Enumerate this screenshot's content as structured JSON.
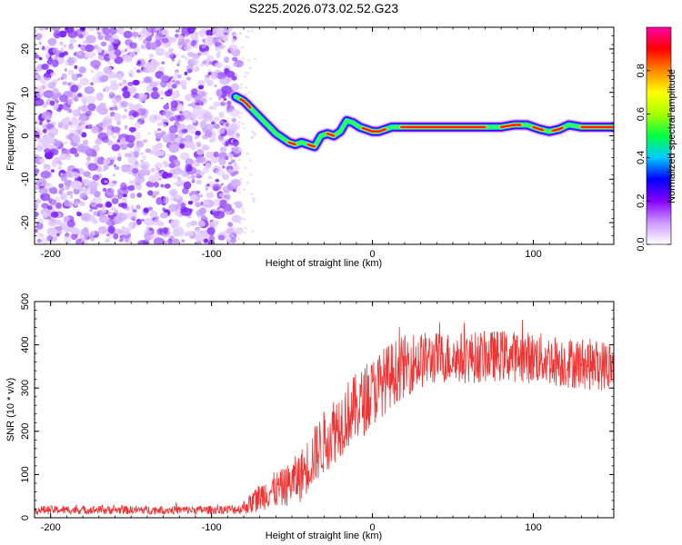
{
  "title": "S225.2026.073.02.52.G23",
  "chart_data": [
    {
      "type": "heatmap",
      "title": "S225.2026.073.02.52.G23",
      "xlabel": "Height of straight line (km)",
      "ylabel": "Frequency (Hz)",
      "xlim": [
        -210,
        150
      ],
      "ylim": [
        -25,
        25
      ],
      "xticks": [
        -200,
        -100,
        0,
        100
      ],
      "xtick_labels": [
        "-200",
        "-100",
        "0",
        "100"
      ],
      "yticks": [
        -20,
        -10,
        0,
        10,
        20
      ],
      "ytick_labels": [
        "-20",
        "-10",
        "0",
        "10",
        "20"
      ],
      "noise_region_km": [
        -210,
        -83
      ],
      "ridge": {
        "x": [
          -85,
          -80,
          -76,
          -72,
          -68,
          -64,
          -60,
          -56,
          -52,
          -48,
          -44,
          -40,
          -36,
          -32,
          -28,
          -24,
          -20,
          -16,
          -12,
          -8,
          -4,
          0,
          4,
          8,
          12,
          20,
          40,
          60,
          80,
          88,
          96,
          104,
          110,
          116,
          122,
          130,
          150
        ],
        "y": [
          9,
          8,
          6.5,
          5,
          3.5,
          2,
          0.5,
          -0.5,
          -1.5,
          -2,
          -1.5,
          -2,
          -2.5,
          0,
          0.5,
          0,
          1,
          3.5,
          3,
          2,
          1.5,
          1,
          1,
          1.5,
          2,
          2,
          2,
          2,
          2,
          2.5,
          2.5,
          1.5,
          1,
          1.5,
          2.5,
          2,
          2
        ]
      },
      "colorbar": {
        "label": "Normalized spectral amplitude",
        "range": [
          0.0,
          1.0
        ],
        "ticks": [
          0.0,
          0.2,
          0.4,
          0.6,
          0.8
        ],
        "tick_labels": [
          "0.0",
          "0.2",
          "0.4",
          "0.6",
          "0.8"
        ],
        "colors": [
          "#ffffff",
          "#cc99ff",
          "#8800ff",
          "#0000ff",
          "#00ccff",
          "#00ff44",
          "#aaff00",
          "#ffff00",
          "#ff8800",
          "#ff0000",
          "#ff00aa"
        ]
      }
    },
    {
      "type": "line",
      "xlabel": "Height of straight line (km)",
      "ylabel": "SNR (10 * v/v)",
      "xlim": [
        -210,
        150
      ],
      "ylim": [
        0,
        500
      ],
      "xticks": [
        -200,
        -100,
        0,
        100
      ],
      "xtick_labels": [
        "-200",
        "-100",
        "0",
        "100"
      ],
      "yticks": [
        0,
        100,
        200,
        300,
        400,
        500
      ],
      "ytick_labels": [
        "0",
        "100",
        "200",
        "300",
        "400",
        "500"
      ],
      "line_color": "#ee3333",
      "series": [
        {
          "name": "SNR",
          "trend": {
            "x": [
              -210,
              -150,
              -100,
              -82,
              -75,
              -65,
              -55,
              -45,
              -35,
              -25,
              -15,
              -5,
              5,
              15,
              25,
              40,
              60,
              80,
              100,
              120,
              150
            ],
            "mean": [
              18,
              18,
              18,
              20,
              35,
              60,
              70,
              95,
              150,
              200,
              240,
              270,
              310,
              340,
              360,
              370,
              370,
              375,
              370,
              360,
              350
            ],
            "amplitude": [
              10,
              10,
              10,
              12,
              25,
              40,
              45,
              60,
              70,
              80,
              80,
              80,
              80,
              75,
              70,
              60,
              60,
              60,
              60,
              60,
              60
            ]
          }
        }
      ]
    }
  ]
}
